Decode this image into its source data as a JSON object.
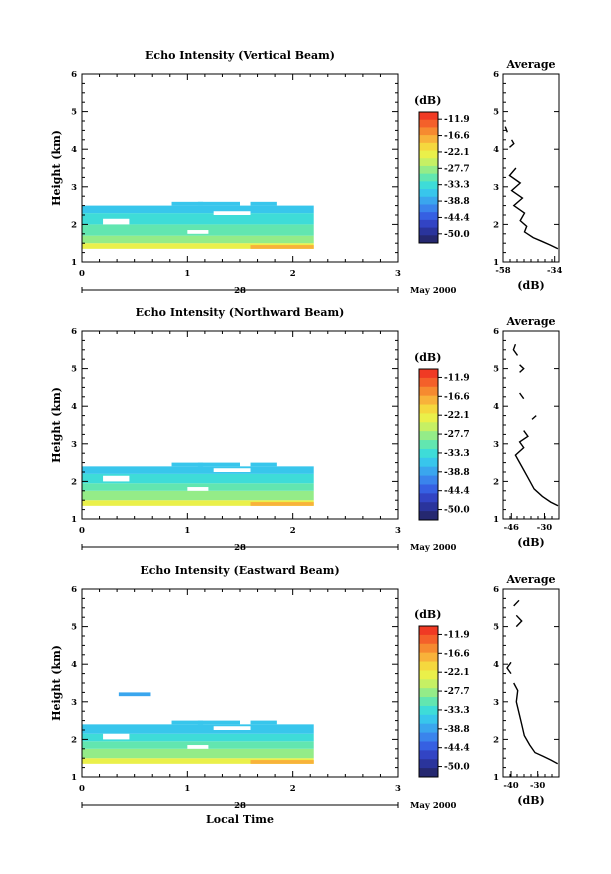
{
  "colorbar": {
    "unit": "(dB)",
    "labels": [
      "-11.9",
      "-16.6",
      "-22.1",
      "-27.7",
      "-33.3",
      "-38.8",
      "-44.4",
      "-50.0"
    ],
    "colors": [
      "#f03a24",
      "#f4602a",
      "#f68a30",
      "#f8b23a",
      "#f5d83e",
      "#eaf04a",
      "#c6f064",
      "#94ec88",
      "#62e6b0",
      "#3edcd8",
      "#38c6ec",
      "#3aa6ee",
      "#3a84ec",
      "#3660e2",
      "#3244c4",
      "#2a349c",
      "#252870"
    ]
  },
  "chart_data": [
    {
      "type": "heatmap",
      "title": "Echo Intensity (Vertical Beam)",
      "ylabel": "Height (km)",
      "xlabel": "",
      "xlim": [
        0,
        3
      ],
      "ylim": [
        1,
        6
      ],
      "x_ticks": [
        "0",
        "1",
        "2",
        "3"
      ],
      "y_ticks": [
        "1",
        "2",
        "3",
        "4",
        "5",
        "6"
      ],
      "date_day": "28",
      "date_month": "May 2000",
      "data_time_range": [
        0,
        2.2
      ],
      "layers": [
        {
          "y": [
            1.35,
            1.5
          ],
          "color": "#eaf04a"
        },
        {
          "y": [
            1.5,
            1.7
          ],
          "color": "#94ec88"
        },
        {
          "y": [
            1.7,
            2.0
          ],
          "color": "#62e6b0"
        },
        {
          "y": [
            2.0,
            2.3
          ],
          "color": "#3edcd8"
        },
        {
          "y": [
            2.3,
            2.5
          ],
          "color": "#38c6ec"
        }
      ],
      "average": {
        "title": "Average",
        "xlabel": "(dB)",
        "x_ticks": [
          "-58",
          "-34"
        ],
        "xlim": [
          -58,
          -32
        ],
        "ylim": [
          1,
          6
        ],
        "segments": [
          [
            [
              -32.5,
              1.35
            ],
            [
              -36,
              1.45
            ],
            [
              -40,
              1.55
            ],
            [
              -44,
              1.65
            ],
            [
              -48,
              1.8
            ],
            [
              -47,
              1.95
            ],
            [
              -50,
              2.1
            ],
            [
              -48,
              2.3
            ],
            [
              -53,
              2.5
            ],
            [
              -49,
              2.7
            ],
            [
              -54,
              2.9
            ],
            [
              -50,
              3.1
            ],
            [
              -55,
              3.3
            ],
            [
              -52,
              3.5
            ]
          ],
          [
            [
              -55,
              4.05
            ],
            [
              -53,
              4.15
            ],
            [
              -54,
              4.25
            ]
          ],
          [
            [
              -56,
              4.45
            ],
            [
              -57,
              4.6
            ]
          ]
        ]
      }
    },
    {
      "type": "heatmap",
      "title": "Echo Intensity (Northward Beam)",
      "ylabel": "Height (km)",
      "xlabel": "",
      "xlim": [
        0,
        3
      ],
      "ylim": [
        1,
        6
      ],
      "x_ticks": [
        "0",
        "1",
        "2",
        "3"
      ],
      "y_ticks": [
        "1",
        "2",
        "3",
        "4",
        "5",
        "6"
      ],
      "date_day": "28",
      "date_month": "May 2000",
      "data_time_range": [
        0,
        2.2
      ],
      "layers": [
        {
          "y": [
            1.35,
            1.5
          ],
          "color": "#eaf04a"
        },
        {
          "y": [
            1.5,
            1.75
          ],
          "color": "#94ec88"
        },
        {
          "y": [
            1.75,
            1.95
          ],
          "color": "#62e6b0"
        },
        {
          "y": [
            1.95,
            2.2
          ],
          "color": "#3edcd8"
        },
        {
          "y": [
            2.2,
            2.4
          ],
          "color": "#38c6ec"
        }
      ],
      "average": {
        "title": "Average",
        "xlabel": "(dB)",
        "x_ticks": [
          "-46",
          "-30"
        ],
        "xlim": [
          -50,
          -23
        ],
        "ylim": [
          1,
          6
        ],
        "segments": [
          [
            [
              -23.5,
              1.35
            ],
            [
              -27,
              1.45
            ],
            [
              -31,
              1.6
            ],
            [
              -35,
              1.8
            ],
            [
              -38,
              2.1
            ],
            [
              -41,
              2.4
            ],
            [
              -44,
              2.7
            ],
            [
              -40,
              2.9
            ],
            [
              -42,
              3.05
            ],
            [
              -38,
              3.2
            ],
            [
              -40,
              3.35
            ]
          ],
          [
            [
              -36,
              3.65
            ],
            [
              -34,
              3.75
            ]
          ],
          [
            [
              -40,
              4.2
            ],
            [
              -42,
              4.35
            ]
          ],
          [
            [
              -42,
              4.9
            ],
            [
              -40,
              5.0
            ],
            [
              -42,
              5.1
            ]
          ],
          [
            [
              -43,
              5.35
            ],
            [
              -45,
              5.5
            ],
            [
              -44,
              5.65
            ]
          ]
        ]
      }
    },
    {
      "type": "heatmap",
      "title": "Echo Intensity (Eastward Beam)",
      "ylabel": "Height (km)",
      "xlabel": "Local Time",
      "xlim": [
        0,
        3
      ],
      "ylim": [
        1,
        6
      ],
      "x_ticks": [
        "0",
        "1",
        "2",
        "3"
      ],
      "y_ticks": [
        "1",
        "2",
        "3",
        "4",
        "5",
        "6"
      ],
      "date_day": "28",
      "date_month": "May 2000",
      "data_time_range": [
        0,
        2.2
      ],
      "layers": [
        {
          "y": [
            1.35,
            1.5
          ],
          "color": "#eaf04a"
        },
        {
          "y": [
            1.5,
            1.75
          ],
          "color": "#94ec88"
        },
        {
          "y": [
            1.75,
            1.95
          ],
          "color": "#62e6b0"
        },
        {
          "y": [
            1.95,
            2.15
          ],
          "color": "#3edcd8"
        },
        {
          "y": [
            2.15,
            2.4
          ],
          "color": "#38c6ec"
        }
      ],
      "extra_patch": {
        "x": [
          0.35,
          0.65
        ],
        "y": [
          3.15,
          3.25
        ],
        "color": "#3aa6ee"
      },
      "average": {
        "title": "Average",
        "xlabel": "(dB)",
        "x_ticks": [
          "-40",
          "-30"
        ],
        "xlim": [
          -43,
          -22
        ],
        "ylim": [
          1,
          6
        ],
        "segments": [
          [
            [
              -22.5,
              1.35
            ],
            [
              -25,
              1.45
            ],
            [
              -28,
              1.55
            ],
            [
              -31,
              1.65
            ],
            [
              -33,
              1.85
            ],
            [
              -35,
              2.1
            ],
            [
              -36,
              2.4
            ],
            [
              -37,
              2.7
            ],
            [
              -38,
              3.0
            ],
            [
              -37.5,
              3.3
            ],
            [
              -39,
              3.5
            ]
          ],
          [
            [
              -40,
              3.75
            ],
            [
              -41.5,
              3.9
            ],
            [
              -40,
              4.05
            ]
          ],
          [
            [
              -38,
              5.0
            ],
            [
              -36,
              5.15
            ],
            [
              -38,
              5.3
            ]
          ],
          [
            [
              -39,
              5.55
            ],
            [
              -37,
              5.7
            ]
          ]
        ]
      }
    }
  ]
}
